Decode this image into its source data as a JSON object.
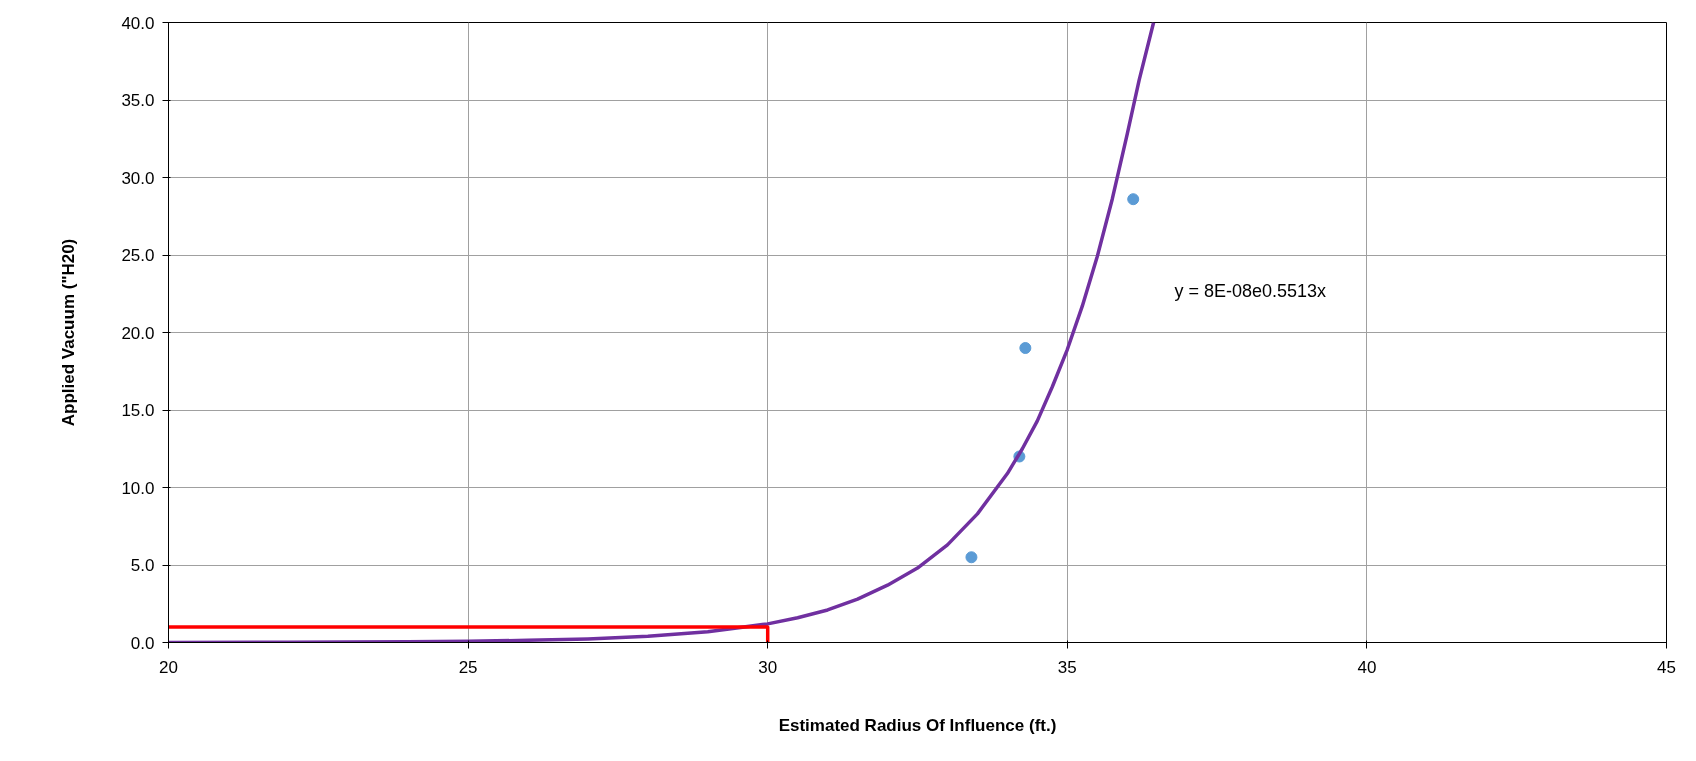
{
  "chart_data": {
    "type": "scatter",
    "xlabel": "Estimated Radius Of Influence (ft.)",
    "ylabel": "Applied Vacuum (\"H20)",
    "xlim": [
      20,
      45
    ],
    "xticks": [
      20,
      25,
      30,
      35,
      40,
      45
    ],
    "ylim": [
      0,
      40
    ],
    "yticks": [
      {
        "value": 0,
        "label": "0.0"
      },
      {
        "value": 5,
        "label": "5.0"
      },
      {
        "value": 10,
        "label": "10.0"
      },
      {
        "value": 15,
        "label": "15.0"
      },
      {
        "value": 20,
        "label": "20.0"
      },
      {
        "value": 25,
        "label": "25.0"
      },
      {
        "value": 30,
        "label": "30.0"
      },
      {
        "value": 35,
        "label": "35.0"
      },
      {
        "value": 40,
        "label": "40.0"
      }
    ],
    "grid": true,
    "annotations": [
      "y = 8E-08e0.5513x"
    ],
    "series": [
      {
        "marker": "circle",
        "color": "#5b9bd5",
        "x": [
          33.4,
          34.2,
          34.3,
          36.1
        ],
        "values": [
          5.5,
          12.0,
          19.0,
          28.6
        ]
      },
      {
        "type": "line",
        "color": "#7030a0",
        "x": [
          20,
          22,
          24,
          25,
          26,
          27,
          28,
          29,
          30,
          30.5,
          31,
          31.5,
          32,
          32.5,
          33,
          33.5,
          34,
          34.25,
          34.5,
          34.75,
          35,
          35.25,
          35.5,
          35.75,
          36,
          36.2,
          36.44
        ],
        "values": [
          0.0,
          0.02,
          0.05,
          0.08,
          0.14,
          0.23,
          0.4,
          0.7,
          1.2,
          1.6,
          2.1,
          2.8,
          3.7,
          4.8,
          6.3,
          8.3,
          10.9,
          12.5,
          14.3,
          16.5,
          18.9,
          21.7,
          24.9,
          28.6,
          32.8,
          36.3,
          40.0
        ]
      },
      {
        "type": "line",
        "color": "#ff0000",
        "x": [
          20,
          30,
          30
        ],
        "values": [
          1.0,
          1.0,
          0.0
        ]
      }
    ]
  }
}
